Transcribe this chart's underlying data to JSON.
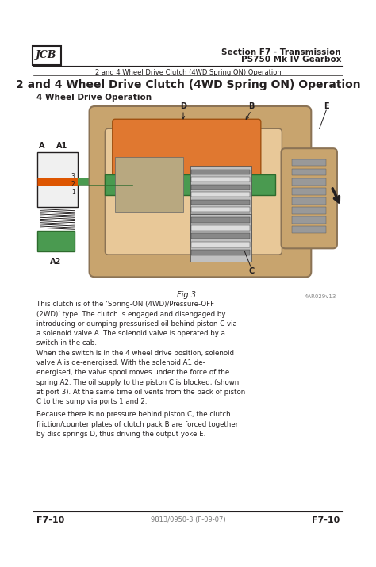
{
  "header_right_line1": "Section F7 - Transmission",
  "header_right_line2": "PS750 Mk IV Gearbox",
  "header_sub": "2 and 4 Wheel Drive Clutch (4WD Spring ON) Operation",
  "title": "2 and 4 Wheel Drive Clutch (4WD Spring ON) Operation",
  "section_label": "4 Wheel Drive Operation",
  "fig_label": "Fig 3.",
  "diagram_ref": "4AR029v13",
  "footer_left": "F7-10",
  "footer_center": "9813/0950-3 (F-09-07)",
  "footer_right": "F7-10",
  "body_text_1": "This clutch is of the ‘Spring-ON (4WD)/Pressure-OFF\n(2WD)’ type. The clutch is engaged and disengaged by\nintroducing or dumping pressurised oil behind piston C via\na solenoid valve A. The solenoid valve is operated by a\nswitch in the cab.",
  "body_text_2": "When the switch is in the 4 wheel drive position, solenoid\nvalve A is de-energised. With the solenoid A1 de-\nenergised, the valve spool moves under the force of the\nspring A2. The oil supply to the piston C is blocked, (shown\nat port 3). At the same time oil vents from the back of piston\nC to the sump via ports 1 and 2.",
  "body_text_3": "Because there is no pressure behind piston C, the clutch\nfriction/counter plates of clutch pack B are forced together\nby disc springs D, thus driving the output yoke E.",
  "bg_color": "#ffffff",
  "text_color": "#231f20",
  "tan_color": "#c8a46e",
  "green_color": "#4a9a50",
  "dark_green": "#2d6b2d",
  "orange_color": "#e07020",
  "grey_color": "#aaaaaa",
  "dark_grey": "#555555",
  "blue_grey": "#7a9aaa"
}
